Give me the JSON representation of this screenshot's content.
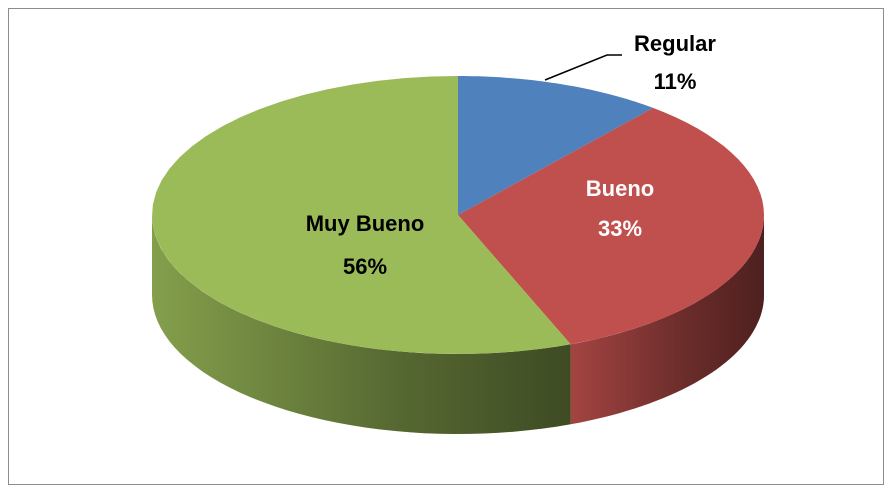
{
  "chart_data": {
    "type": "pie",
    "categories": [
      "Regular",
      "Bueno",
      "Muy Bueno"
    ],
    "values": [
      11,
      33,
      56
    ],
    "value_labels": [
      "11%",
      "33%",
      "56%"
    ],
    "colors": [
      "#4f81bd",
      "#c0504d",
      "#9bbb59"
    ]
  }
}
